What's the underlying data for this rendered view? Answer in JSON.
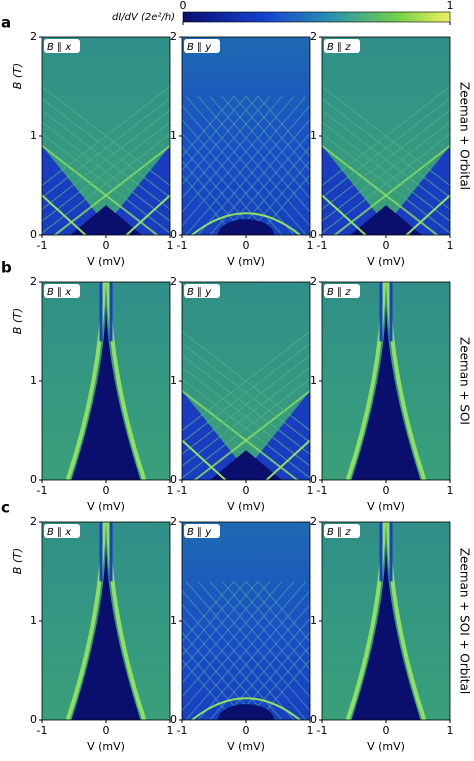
{
  "colorbar": {
    "label": "dI/dV (2e²/h)",
    "ticks": [
      0,
      1
    ]
  },
  "axes": {
    "xlabel": "V (mV)",
    "ylabel": "B (T)",
    "xlim": [
      -1,
      1
    ],
    "ylim": [
      0,
      2
    ],
    "xticks": [
      -1,
      0,
      1
    ],
    "yticks": [
      0,
      1,
      2
    ]
  },
  "rows": [
    {
      "letter": "a",
      "title": "Zeeman + Orbital",
      "panels": [
        {
          "label": "B ∥ x"
        },
        {
          "label": "B ∥ y"
        },
        {
          "label": "B ∥ z"
        }
      ]
    },
    {
      "letter": "b",
      "title": "Zeeman + SOI",
      "panels": [
        {
          "label": "B ∥ x"
        },
        {
          "label": "B ∥ y"
        },
        {
          "label": "B ∥ z"
        }
      ]
    },
    {
      "letter": "c",
      "title": "Zeeman + SOI + Orbital",
      "panels": [
        {
          "label": "B ∥ x"
        },
        {
          "label": "B ∥ y"
        },
        {
          "label": "B ∥ z"
        }
      ]
    }
  ]
}
